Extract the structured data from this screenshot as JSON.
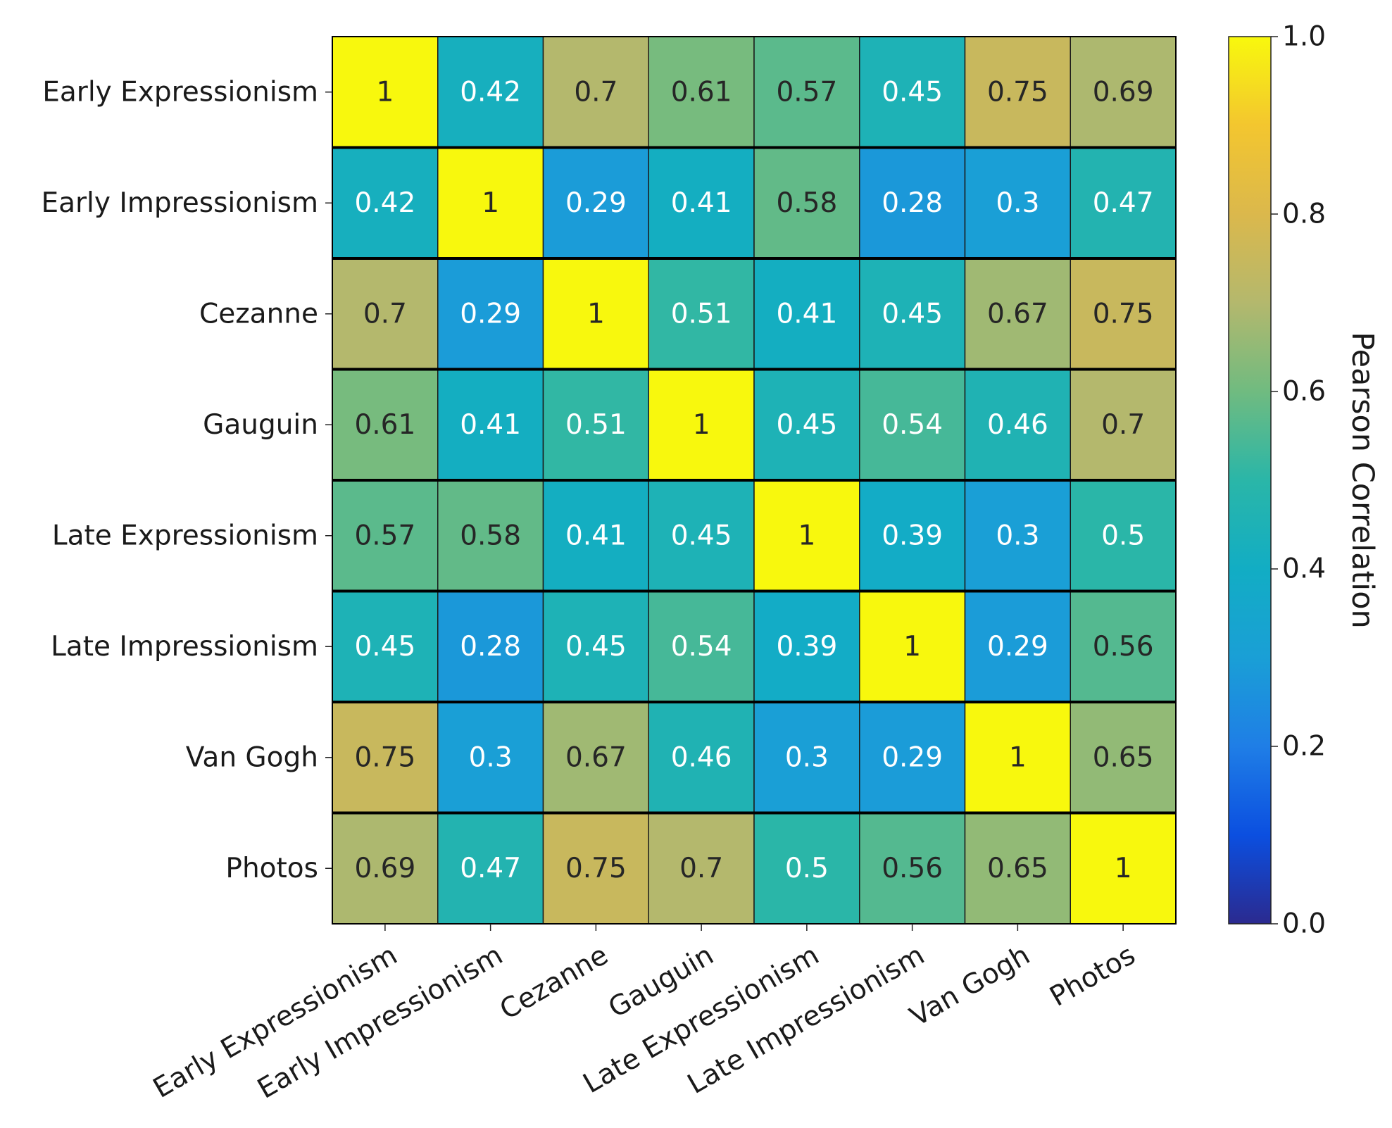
{
  "chart_data": {
    "type": "heatmap",
    "title": "",
    "xlabel": "",
    "ylabel": "",
    "row_labels": [
      "Early Expressionism",
      "Early Impressionism",
      "Cezanne",
      "Gauguin",
      "Late Expressionism",
      "Late Impressionism",
      "Van Gogh",
      "Photos"
    ],
    "col_labels": [
      "Early Expressionism",
      "Early Impressionism",
      "Cezanne",
      "Gauguin",
      "Late Expressionism",
      "Late Impressionism",
      "Van Gogh",
      "Photos"
    ],
    "values": [
      [
        1,
        0.42,
        0.7,
        0.61,
        0.57,
        0.45,
        0.75,
        0.69
      ],
      [
        0.42,
        1,
        0.29,
        0.41,
        0.58,
        0.28,
        0.3,
        0.47
      ],
      [
        0.7,
        0.29,
        1,
        0.51,
        0.41,
        0.45,
        0.67,
        0.75
      ],
      [
        0.61,
        0.41,
        0.51,
        1,
        0.45,
        0.54,
        0.46,
        0.7
      ],
      [
        0.57,
        0.58,
        0.41,
        0.45,
        1,
        0.39,
        0.3,
        0.5
      ],
      [
        0.45,
        0.28,
        0.45,
        0.54,
        0.39,
        1,
        0.29,
        0.56
      ],
      [
        0.75,
        0.3,
        0.67,
        0.46,
        0.3,
        0.29,
        1,
        0.65
      ],
      [
        0.69,
        0.47,
        0.75,
        0.7,
        0.5,
        0.56,
        0.65,
        1
      ]
    ],
    "colorbar": {
      "label": "Pearson Correlation",
      "range": [
        0,
        1
      ],
      "ticks": [
        "0.0",
        "0.2",
        "0.4",
        "0.6",
        "0.8",
        "1.0"
      ],
      "stops": [
        {
          "v": 0.0,
          "color": "#2b2a8f"
        },
        {
          "v": 0.1,
          "color": "#0b4fe0"
        },
        {
          "v": 0.2,
          "color": "#1f7ee6"
        },
        {
          "v": 0.3,
          "color": "#1a9fd6"
        },
        {
          "v": 0.4,
          "color": "#12adc4"
        },
        {
          "v": 0.5,
          "color": "#2ab6a8"
        },
        {
          "v": 0.6,
          "color": "#70bb80"
        },
        {
          "v": 0.7,
          "color": "#b4b86d"
        },
        {
          "v": 0.8,
          "color": "#dbb84c"
        },
        {
          "v": 0.9,
          "color": "#f3c62f"
        },
        {
          "v": 1.0,
          "color": "#f8f80d"
        }
      ]
    },
    "label_color_dark": "#262626",
    "label_color_light": "#ffffff"
  }
}
